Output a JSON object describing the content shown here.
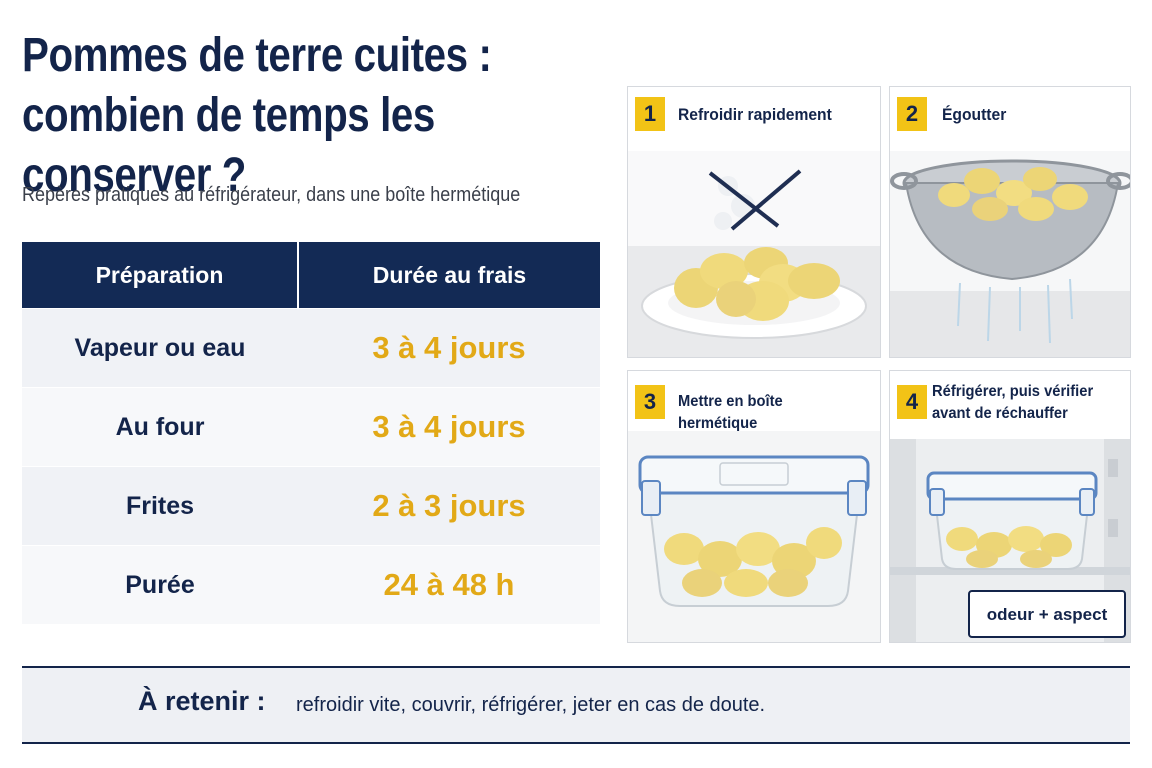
{
  "header": {
    "title_line1": "Pommes de terre cuites :",
    "title_line2": "combien de temps les conserver ?",
    "subtitle": "Repères pratiques au réfrigérateur, dans une boîte hermétique"
  },
  "table": {
    "columns": [
      "Préparation",
      "Durée au frais"
    ],
    "rows": [
      {
        "preparation": "Vapeur ou eau",
        "duree": "3 à 4 jours"
      },
      {
        "preparation": "Au four",
        "duree": "3 à 4 jours"
      },
      {
        "preparation": "Frites",
        "duree": "2 à 3 jours"
      },
      {
        "preparation": "Purée",
        "duree": "24 à 48 h"
      }
    ]
  },
  "steps": [
    {
      "number": "1",
      "label": "Refroidir rapidement",
      "icon": "cooling-potatoes-plate"
    },
    {
      "number": "2",
      "label": "Égoutter",
      "icon": "colander-potatoes"
    },
    {
      "number": "3",
      "label": "Mettre en boîte hermétique",
      "icon": "airtight-container"
    },
    {
      "number": "4",
      "label_line1": "Réfrigérer, puis vérifier",
      "label_line2": "avant de réchauffer",
      "check": "odeur + aspect",
      "icon": "fridge-container"
    }
  ],
  "footer": {
    "label": "À retenir :",
    "text": "refroidir vite, couvrir, réfrigérer, jeter en cas de doute."
  },
  "colors": {
    "navy": "#132a55",
    "gold": "#e2a917",
    "badge": "#f2c316"
  }
}
